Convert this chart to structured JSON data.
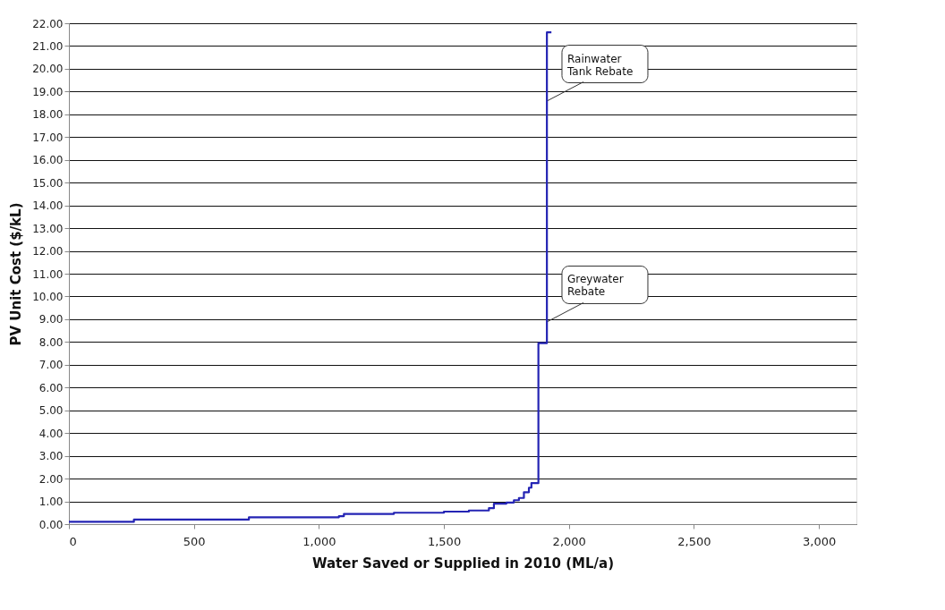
{
  "chart_data": {
    "type": "step",
    "xlabel": "Water Saved or Supplied in 2010 (ML/a)",
    "ylabel": "PV Unit Cost ($/kL)",
    "x": [
      0,
      250,
      260,
      700,
      720,
      1080,
      1100,
      1300,
      1500,
      1600,
      1680,
      1700,
      1750,
      1780,
      1800,
      1820,
      1840,
      1850,
      1878,
      1878,
      1912,
      1912,
      1930
    ],
    "series": [
      {
        "color": "#2424b4",
        "values": [
          0.1,
          0.1,
          0.2,
          0.2,
          0.3,
          0.35,
          0.45,
          0.5,
          0.55,
          0.6,
          0.7,
          0.9,
          0.95,
          1.05,
          1.15,
          1.4,
          1.6,
          1.8,
          1.8,
          7.95,
          7.95,
          21.6,
          21.6
        ]
      }
    ],
    "xlim": [
      0,
      3150
    ],
    "xticks": [
      0,
      500,
      {
        "value": 1000,
        "label": "1,000"
      },
      {
        "value": 1500,
        "label": "1,500"
      },
      {
        "value": 2000,
        "label": "2,000"
      },
      {
        "value": 2500,
        "label": "2,500"
      },
      {
        "value": 3000,
        "label": "3,000"
      }
    ],
    "ylim": [
      0,
      22
    ],
    "yticks": [
      {
        "value": 0,
        "label": "0.00"
      },
      {
        "value": 1,
        "label": "1.00"
      },
      {
        "value": 2,
        "label": "2.00"
      },
      {
        "value": 3,
        "label": "3.00"
      },
      {
        "value": 4,
        "label": "4.00"
      },
      {
        "value": 5,
        "label": "5.00"
      },
      {
        "value": 6,
        "label": "6.00"
      },
      {
        "value": 7,
        "label": "7.00"
      },
      {
        "value": 8,
        "label": "8.00"
      },
      {
        "value": 9,
        "label": "9.00"
      },
      {
        "value": 10,
        "label": "10.00"
      },
      {
        "value": 11,
        "label": "11.00"
      },
      {
        "value": 12,
        "label": "12.00"
      },
      {
        "value": 13,
        "label": "13.00"
      },
      {
        "value": 14,
        "label": "14.00"
      },
      {
        "value": 15,
        "label": "15.00"
      },
      {
        "value": 16,
        "label": "16.00"
      },
      {
        "value": 17,
        "label": "17.00"
      },
      {
        "value": 18,
        "label": "18.00"
      },
      {
        "value": 19,
        "label": "19.00"
      },
      {
        "value": 20,
        "label": "20.00"
      },
      {
        "value": 21,
        "label": "21.00"
      },
      {
        "value": 22,
        "label": "22.00"
      }
    ],
    "grid": "y",
    "marker": "none",
    "line_style": "solid",
    "annotations": [
      {
        "text": "Rainwater\nTank Rebate",
        "x": 1915,
        "y": 18.6
      },
      {
        "text": "Greywater\nRebate",
        "x": 1915,
        "y": 8.9
      }
    ]
  }
}
